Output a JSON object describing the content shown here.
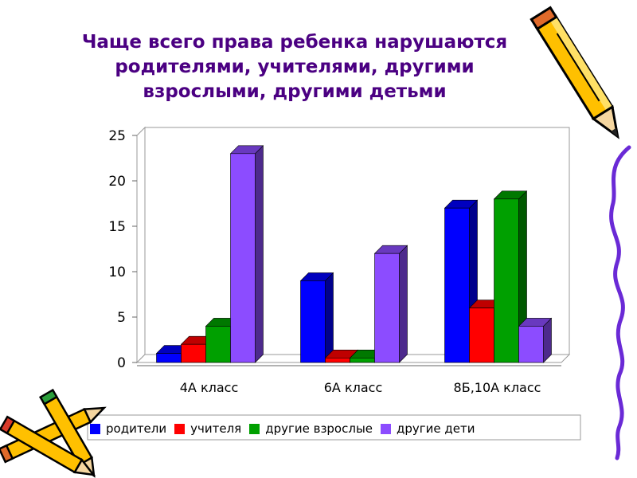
{
  "title_lines": [
    "Чаще всего права ребенка нарушаются",
    "родителями, учителями, другими",
    "взрослыми, другими детьми"
  ],
  "chart_data": {
    "type": "bar",
    "categories": [
      "4А класс",
      "6А класс",
      "8Б,10А класс"
    ],
    "series": [
      {
        "name": "родители",
        "color": "#0000ff",
        "values": [
          1,
          9,
          17
        ]
      },
      {
        "name": "учителя",
        "color": "#ff0000",
        "values": [
          2,
          0.5,
          6
        ]
      },
      {
        "name": "другие взрослые",
        "color": "#00a000",
        "values": [
          4,
          0.5,
          18
        ]
      },
      {
        "name": "другие дети",
        "color": "#8c4cff",
        "values": [
          23,
          12,
          4
        ]
      }
    ],
    "yticks": [
      0,
      5,
      10,
      15,
      20,
      25
    ],
    "ylim": [
      0,
      25
    ],
    "grid": false,
    "legend_position": "bottom"
  },
  "colors": {
    "title": "#4b0082",
    "legend_border": "#9a9a9a"
  },
  "icons": {
    "pencil_top_right": "pencil-icon",
    "pencils_bottom_left": "crossed-pencils-icon",
    "squiggle_right": "purple-squiggle-decoration"
  }
}
